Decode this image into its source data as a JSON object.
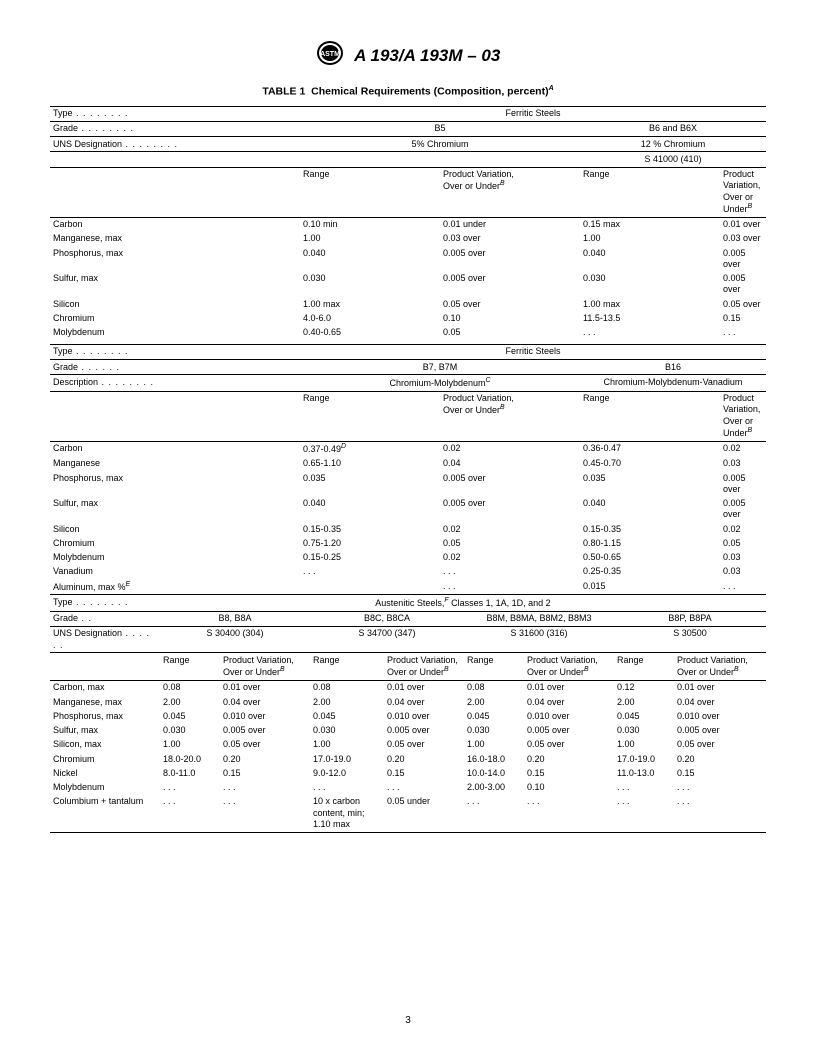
{
  "doc_title": "A 193/A 193M – 03",
  "table_title": "TABLE 1  Chemical Requirements (Composition, percent)",
  "table_title_sup": "A",
  "page_number": "3",
  "section1": {
    "type_label": "Type",
    "type_value": "Ferritic Steels",
    "grade_label": "Grade",
    "grade_b5": "B5",
    "grade_b6": "B6 and B6X",
    "uns_label": "UNS Designation",
    "uns_b5": "5% Chromium",
    "uns_b6": "12 % Chromium",
    "uns_b6_sub": "S 41000 (410)",
    "hdr_range": "Range",
    "hdr_var": "Product Variation,\nOver or Under",
    "hdr_var_sup": "B",
    "rows": [
      [
        "Carbon",
        "0.10 min",
        "0.01 under",
        "0.15 max",
        "0.01 over"
      ],
      [
        "Manganese, max",
        "1.00",
        "0.03 over",
        "1.00",
        "0.03 over"
      ],
      [
        "Phosphorus, max",
        "0.040",
        "0.005 over",
        "0.040",
        "0.005 over"
      ],
      [
        "Sulfur, max",
        "0.030",
        "0.005 over",
        "0.030",
        "0.005 over"
      ],
      [
        "Silicon",
        "1.00 max",
        "0.05 over",
        "1.00 max",
        "0.05 over"
      ],
      [
        "Chromium",
        "4.0-6.0",
        "0.10",
        "11.5-13.5",
        "0.15"
      ],
      [
        "Molybdenum",
        "0.40-0.65",
        "0.05",
        ". . .",
        ". . ."
      ]
    ]
  },
  "section2": {
    "type_label": "Type",
    "type_value": "Ferritic Steels",
    "grade_label": "Grade",
    "grade_b7": "B7, B7M",
    "grade_b16": "B16",
    "desc_label": "Description",
    "desc_b7": "Chromium-Molybdenum",
    "desc_b7_sup": "C",
    "desc_b16": "Chromium-Molybdenum-Vanadium",
    "hdr_range": "Range",
    "hdr_var": "Product Variation,\nOver or Under",
    "hdr_var_sup": "B",
    "rows": [
      [
        "Carbon",
        "0.37-0.49",
        "D",
        "0.02",
        "0.36-0.47",
        "0.02"
      ],
      [
        "Manganese",
        "0.65-1.10",
        "",
        "0.04",
        "0.45-0.70",
        "0.03"
      ],
      [
        "Phosphorus, max",
        "0.035",
        "",
        "0.005 over",
        "0.035",
        "0.005 over"
      ],
      [
        "Sulfur, max",
        "0.040",
        "",
        "0.005 over",
        "0.040",
        "0.005 over"
      ],
      [
        "Silicon",
        "0.15-0.35",
        "",
        "0.02",
        "0.15-0.35",
        "0.02"
      ],
      [
        "Chromium",
        "0.75-1.20",
        "",
        "0.05",
        "0.80-1.15",
        "0.05"
      ],
      [
        "Molybdenum",
        "0.15-0.25",
        "",
        "0.02",
        "0.50-0.65",
        "0.03"
      ],
      [
        "Vanadium",
        ". . .",
        "",
        ". . .",
        "0.25-0.35",
        "0.03"
      ],
      [
        "Aluminum, max %",
        "",
        "E",
        ". . .",
        "0.015",
        ". . ."
      ]
    ]
  },
  "section3": {
    "type_label": "Type",
    "type_value": "Austenitic Steels,",
    "type_value_sup": "F",
    "type_value_suffix": " Classes 1, 1A, 1D, and 2",
    "grade_label": "Grade",
    "grades": [
      "B8, B8A",
      "B8C, B8CA",
      "B8M, B8MA, B8M2, B8M3",
      "B8P, B8PA"
    ],
    "uns_label": "UNS Designation",
    "uns": [
      "S 30400 (304)",
      "S 34700 (347)",
      "S 31600 (316)",
      "S 30500"
    ],
    "hdr_range": "Range",
    "hdr_var": "Product Variation,\nOver or Under",
    "hdr_var_sup": "B",
    "rows": [
      [
        "Carbon, max",
        "0.08",
        "0.01 over",
        "0.08",
        "0.01 over",
        "0.08",
        "0.01 over",
        "0.12",
        "0.01 over"
      ],
      [
        "Manganese, max",
        "2.00",
        "0.04 over",
        "2.00",
        "0.04 over",
        "2.00",
        "0.04 over",
        "2.00",
        "0.04 over"
      ],
      [
        "Phosphorus, max",
        "0.045",
        "0.010 over",
        "0.045",
        "0.010 over",
        "0.045",
        "0.010 over",
        "0.045",
        "0.010 over"
      ],
      [
        "Sulfur, max",
        "0.030",
        "0.005 over",
        "0.030",
        "0.005 over",
        "0.030",
        "0.005 over",
        "0.030",
        "0.005 over"
      ],
      [
        "Silicon, max",
        "1.00",
        "0.05 over",
        "1.00",
        "0.05 over",
        "1.00",
        "0.05 over",
        "1.00",
        "0.05 over"
      ],
      [
        "Chromium",
        "18.0-20.0",
        "0.20",
        "17.0-19.0",
        "0.20",
        "16.0-18.0",
        "0.20",
        "17.0-19.0",
        "0.20"
      ],
      [
        "Nickel",
        "8.0-11.0",
        "0.15",
        "9.0-12.0",
        "0.15",
        "10.0-14.0",
        "0.15",
        "11.0-13.0",
        "0.15"
      ],
      [
        "Molybdenum",
        ". . .",
        ". . .",
        ". . .",
        ". . .",
        "2.00-3.00",
        "0.10",
        ". . .",
        ". . ."
      ],
      [
        "Columbium + tantalum",
        ". . .",
        ". . .",
        "10 x carbon content, min; 1.10 max",
        "0.05 under",
        ". . .",
        ". . .",
        ". . .",
        ". . ."
      ]
    ]
  }
}
